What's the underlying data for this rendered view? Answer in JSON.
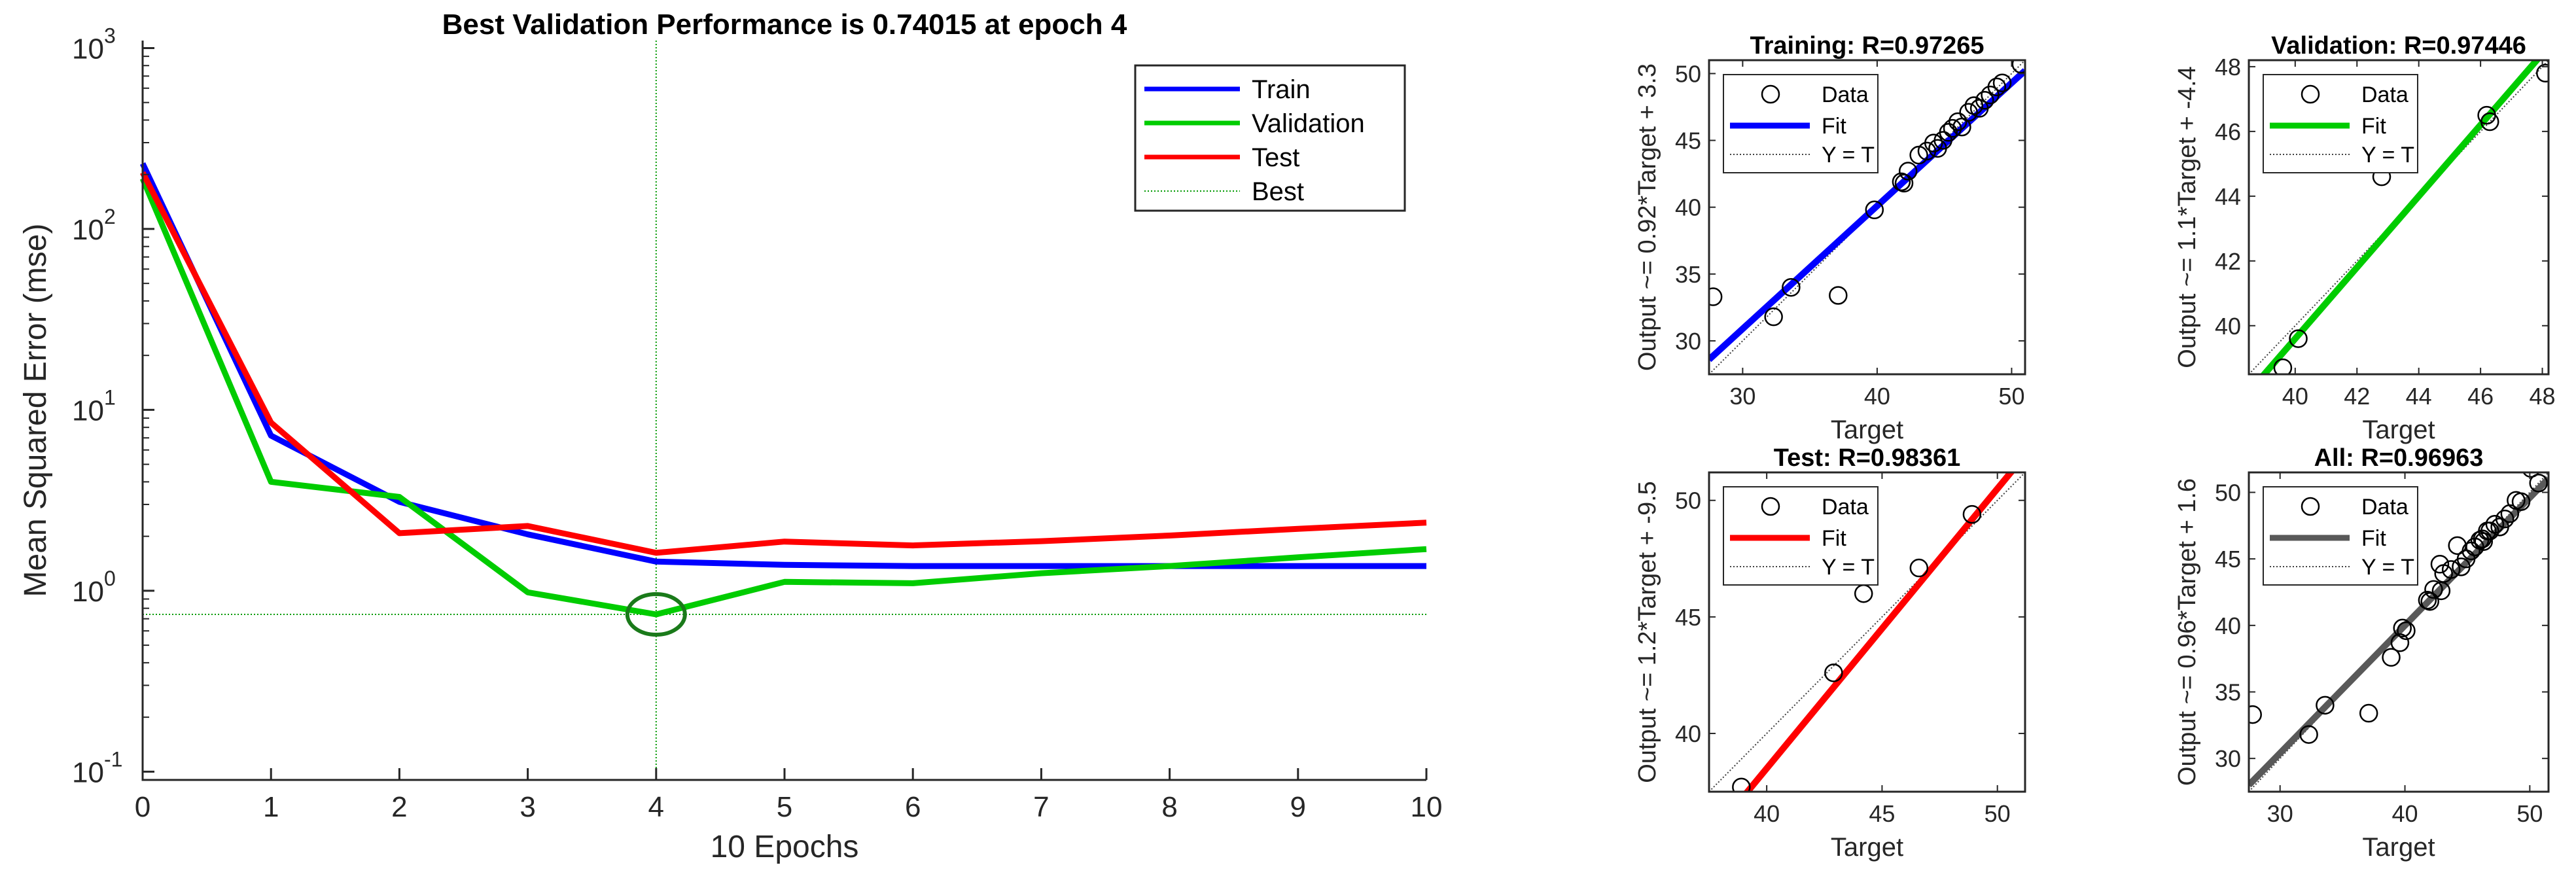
{
  "colors": {
    "train": "#0000ff",
    "validation": "#00cc00",
    "test": "#ff0000",
    "best": "#009900",
    "all": "#595959",
    "identity": "#404040",
    "axes": "#262626"
  },
  "chart_data": [
    {
      "type": "line",
      "title": "Best Validation Performance is 0.74015 at epoch 4",
      "xlabel": "10 Epochs",
      "ylabel": "Mean Squared Error  (mse)",
      "xlim": [
        0,
        10
      ],
      "ylim": [
        0.09,
        1100
      ],
      "yscale": "log",
      "xticks": [
        "0",
        "1",
        "2",
        "3",
        "4",
        "5",
        "6",
        "7",
        "8",
        "9",
        "10"
      ],
      "yticks": [
        {
          "value": 0.1,
          "base": "10",
          "exp": "-1"
        },
        {
          "value": 1,
          "base": "10",
          "exp": "0"
        },
        {
          "value": 10,
          "base": "10",
          "exp": "1"
        },
        {
          "value": 100,
          "base": "10",
          "exp": "2"
        },
        {
          "value": 1000,
          "base": "10",
          "exp": "3"
        }
      ],
      "x": [
        0,
        1,
        2,
        3,
        4,
        5,
        6,
        7,
        8,
        9,
        10
      ],
      "series": [
        {
          "name": "Train",
          "color_key": "train",
          "values": [
            230,
            7.2,
            3.1,
            2.05,
            1.45,
            1.39,
            1.37,
            1.37,
            1.37,
            1.37,
            1.37
          ]
        },
        {
          "name": "Validation",
          "color_key": "validation",
          "values": [
            190,
            4.0,
            3.3,
            0.98,
            0.74015,
            1.12,
            1.1,
            1.25,
            1.37,
            1.53,
            1.7
          ]
        },
        {
          "name": "Test",
          "color_key": "test",
          "values": [
            205,
            8.5,
            2.08,
            2.28,
            1.62,
            1.87,
            1.78,
            1.88,
            2.02,
            2.2,
            2.38
          ]
        }
      ],
      "best": {
        "name": "Best",
        "epoch": 4,
        "value": 0.74015
      },
      "legend_position": "top-right"
    },
    {
      "type": "scatter",
      "title": "Training: R=0.97265",
      "xlabel": "Target",
      "ylabel": "Output ~= 0.92*Target + 3.3",
      "color_key": "train",
      "xlim": [
        27.5,
        51
      ],
      "ylim": [
        27.5,
        51
      ],
      "xticks": [
        30,
        40,
        50
      ],
      "yticks": [
        30,
        35,
        40,
        45,
        50
      ],
      "fit": {
        "slope": 0.92,
        "intercept": 3.3
      },
      "legend": [
        "Data",
        "Fit",
        "Y = T"
      ],
      "points": [
        [
          27.8,
          33.3
        ],
        [
          32.3,
          31.8
        ],
        [
          33.6,
          34.0
        ],
        [
          37.1,
          33.4
        ],
        [
          39.8,
          39.8
        ],
        [
          41.8,
          41.9
        ],
        [
          42.0,
          41.8
        ],
        [
          42.3,
          42.7
        ],
        [
          43.1,
          43.9
        ],
        [
          43.7,
          44.2
        ],
        [
          44.2,
          44.8
        ],
        [
          44.5,
          44.4
        ],
        [
          44.9,
          45.0
        ],
        [
          45.3,
          45.6
        ],
        [
          45.6,
          45.9
        ],
        [
          46.0,
          46.4
        ],
        [
          46.3,
          46.0
        ],
        [
          46.8,
          47.1
        ],
        [
          47.2,
          47.6
        ],
        [
          47.6,
          47.4
        ],
        [
          48.0,
          48.0
        ],
        [
          48.4,
          48.4
        ],
        [
          48.9,
          49.0
        ],
        [
          49.3,
          49.3
        ],
        [
          50.7,
          50.7
        ]
      ]
    },
    {
      "type": "scatter",
      "title": "Validation: R=0.97446",
      "xlabel": "Target",
      "ylabel": "Output ~= 1.1*Target + -4.4",
      "color_key": "validation",
      "xlim": [
        38.5,
        48.2
      ],
      "ylim": [
        38.5,
        48.2
      ],
      "xticks": [
        40,
        42,
        44,
        46,
        48
      ],
      "yticks": [
        40,
        42,
        44,
        46,
        48
      ],
      "fit": {
        "slope": 1.1,
        "intercept": -4.4
      },
      "legend": [
        "Data",
        "Fit",
        "Y = T"
      ],
      "points": [
        [
          39.6,
          38.7
        ],
        [
          40.1,
          39.6
        ],
        [
          42.8,
          44.6
        ],
        [
          46.2,
          46.5
        ],
        [
          46.3,
          46.3
        ],
        [
          48.1,
          47.8
        ]
      ]
    },
    {
      "type": "scatter",
      "title": "Test: R=0.98361",
      "xlabel": "Target",
      "ylabel": "Output ~= 1.2*Target + -9.5",
      "color_key": "test",
      "xlim": [
        37.5,
        51.2
      ],
      "ylim": [
        37.5,
        51.2
      ],
      "xticks": [
        40,
        45,
        50
      ],
      "yticks": [
        40,
        45,
        50
      ],
      "fit": {
        "slope": 1.2,
        "intercept": -9.5
      },
      "legend": [
        "Data",
        "Fit",
        "Y = T"
      ],
      "points": [
        [
          38.9,
          37.7
        ],
        [
          42.9,
          42.6
        ],
        [
          44.2,
          46.0
        ],
        [
          46.6,
          47.1
        ],
        [
          48.9,
          49.4
        ],
        [
          50.1,
          51.8
        ]
      ]
    },
    {
      "type": "scatter",
      "title": "All: R=0.96963",
      "xlabel": "Target",
      "ylabel": "Output ~= 0.96*Target + 1.6",
      "color_key": "all",
      "xlim": [
        27.5,
        51.5
      ],
      "ylim": [
        27.5,
        51.5
      ],
      "xticks": [
        30,
        40,
        50
      ],
      "yticks": [
        30,
        35,
        40,
        45,
        50
      ],
      "fit": {
        "slope": 0.96,
        "intercept": 1.6
      },
      "legend": [
        "Data",
        "Fit",
        "Y = T"
      ],
      "points": [
        [
          27.8,
          33.3
        ],
        [
          32.3,
          31.8
        ],
        [
          33.6,
          34.0
        ],
        [
          37.1,
          33.4
        ],
        [
          38.9,
          37.6
        ],
        [
          39.6,
          38.7
        ],
        [
          39.8,
          39.8
        ],
        [
          40.1,
          39.6
        ],
        [
          41.8,
          41.9
        ],
        [
          42.0,
          41.8
        ],
        [
          42.3,
          42.7
        ],
        [
          42.8,
          44.6
        ],
        [
          42.9,
          42.6
        ],
        [
          43.1,
          43.9
        ],
        [
          43.7,
          44.2
        ],
        [
          44.2,
          46.0
        ],
        [
          44.5,
          44.4
        ],
        [
          44.9,
          45.0
        ],
        [
          45.3,
          45.6
        ],
        [
          45.6,
          45.9
        ],
        [
          46.0,
          46.4
        ],
        [
          46.2,
          46.5
        ],
        [
          46.3,
          46.3
        ],
        [
          46.6,
          47.1
        ],
        [
          46.8,
          47.1
        ],
        [
          47.2,
          47.6
        ],
        [
          47.6,
          47.4
        ],
        [
          48.0,
          48.0
        ],
        [
          48.4,
          48.4
        ],
        [
          48.9,
          49.4
        ],
        [
          49.3,
          49.3
        ],
        [
          50.1,
          51.8
        ],
        [
          50.7,
          50.7
        ]
      ]
    }
  ]
}
